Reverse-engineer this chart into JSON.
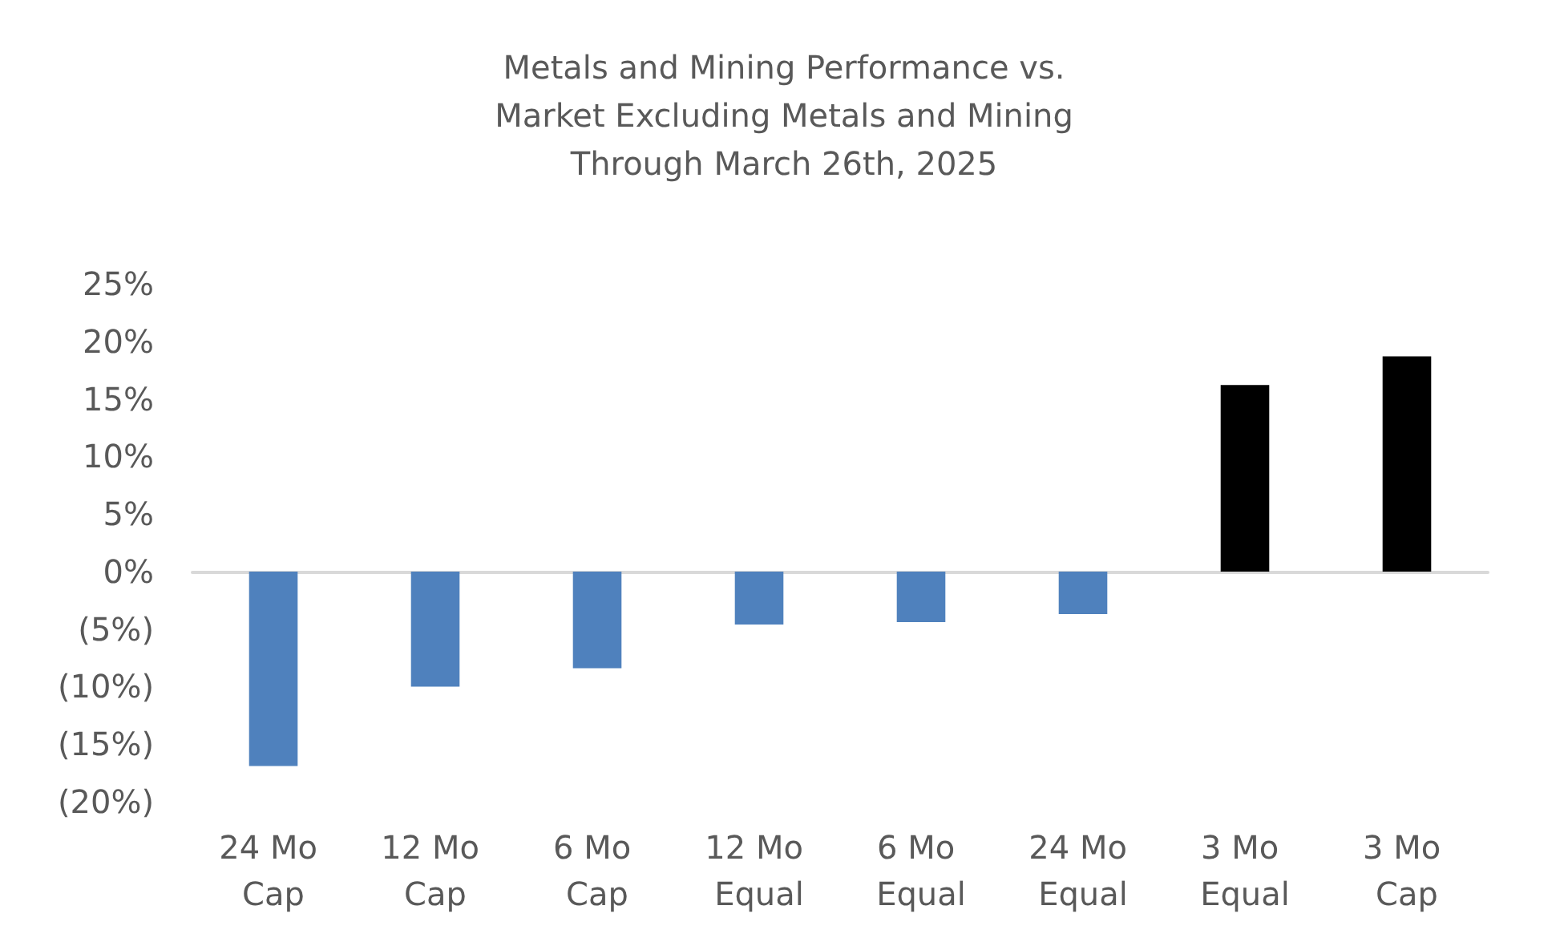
{
  "chart_data": {
    "type": "bar",
    "title": "Metals and Mining Performance vs.\nMarket Excluding Metals and Mining\nThrough March 26th, 2025",
    "categories": [
      "24 Mo Cap",
      "12 Mo Cap",
      "6 Mo Cap",
      "12 Mo Equal",
      "6 Mo Equal",
      "24 Mo Equal",
      "3 Mo Equal",
      "3 Mo Cap"
    ],
    "values": [
      -16.9,
      -10.0,
      -8.4,
      -4.6,
      -4.4,
      -3.7,
      16.2,
      18.7
    ],
    "colors": [
      "#4f81bd",
      "#4f81bd",
      "#4f81bd",
      "#4f81bd",
      "#4f81bd",
      "#4f81bd",
      "#000000",
      "#000000"
    ],
    "ylim": [
      -20,
      25
    ],
    "yticks": [
      {
        "value": -20,
        "label": "(20%)"
      },
      {
        "value": -15,
        "label": "(15%)"
      },
      {
        "value": -10,
        "label": "(10%)"
      },
      {
        "value": -5,
        "label": "(5%)"
      },
      {
        "value": 0,
        "label": "0%"
      },
      {
        "value": 5,
        "label": "5%"
      },
      {
        "value": 10,
        "label": "10%"
      },
      {
        "value": 15,
        "label": "15%"
      },
      {
        "value": 20,
        "label": "20%"
      },
      {
        "value": 25,
        "label": "25%"
      }
    ],
    "data_labels": false
  }
}
